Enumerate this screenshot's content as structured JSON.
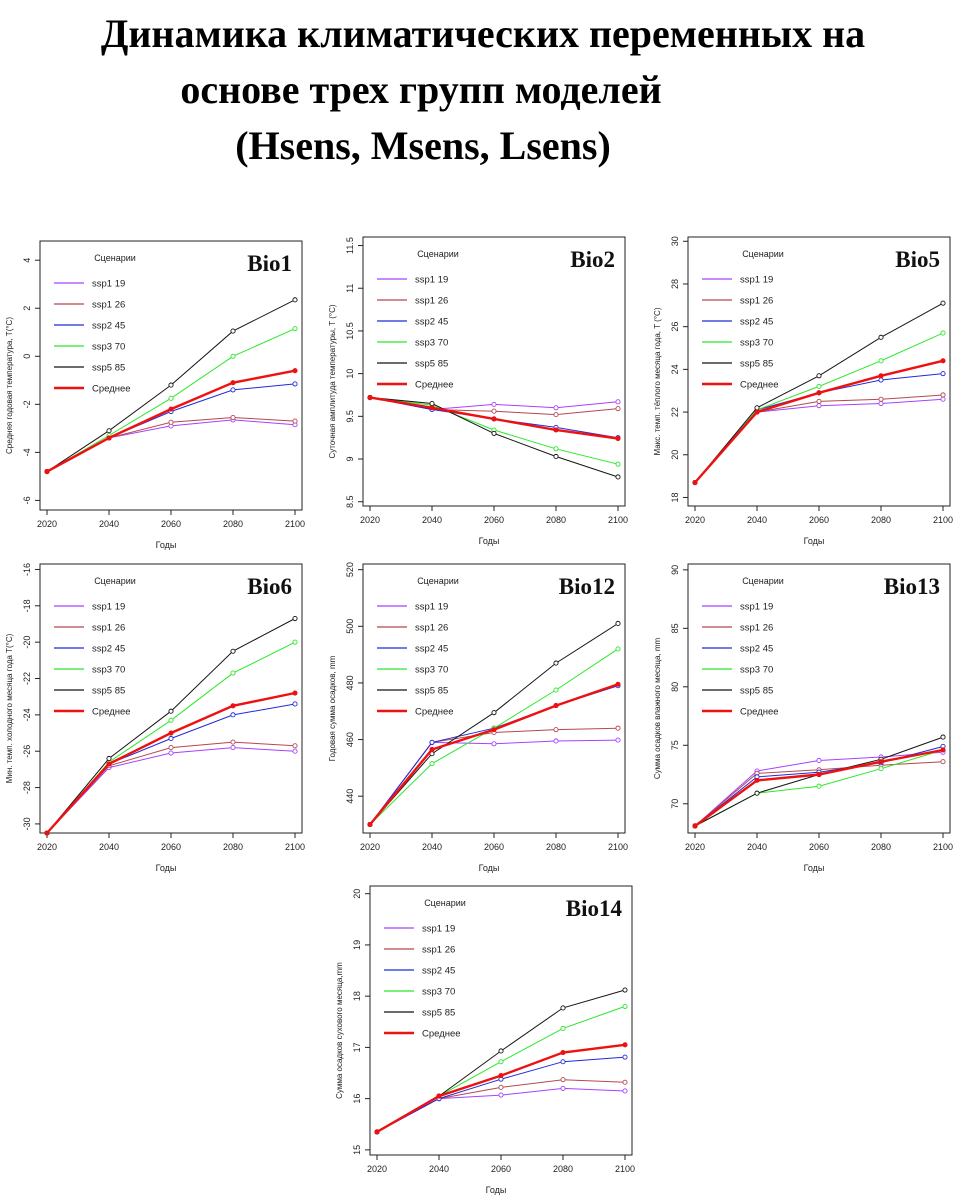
{
  "title_lines": [
    "Динамика климатических переменных на",
    "основе трех групп моделей",
    "(Hsens, Msens, Lsens)"
  ],
  "colors": {
    "ssp1 19": "#a641ff",
    "ssp1 26": "#b5494e",
    "ssp2 45": "#1f2bd8",
    "ssp3 70": "#2ae82a",
    "ssp5 85": "#151515",
    "Среднее": "#ee1111"
  },
  "chart_data": [
    {
      "id": "Bio1",
      "type": "line",
      "title": "Bio1",
      "legend_title": "Сценарии",
      "legend_position": "top-left",
      "xlabel": "Годы",
      "ylabel": "Средняя годовая температура, T(°C)",
      "x": [
        2020,
        2040,
        2060,
        2080,
        2100
      ],
      "ylim": [
        -6.4,
        4.8
      ],
      "yticks": [
        -6,
        -4,
        -2,
        0,
        2,
        4
      ],
      "series": [
        {
          "name": "ssp1 19",
          "values": [
            -4.8,
            -3.4,
            -2.9,
            -2.65,
            -2.85
          ]
        },
        {
          "name": "ssp1 26",
          "values": [
            -4.8,
            -3.4,
            -2.75,
            -2.55,
            -2.7
          ]
        },
        {
          "name": "ssp2 45",
          "values": [
            -4.8,
            -3.4,
            -2.3,
            -1.4,
            -1.15
          ]
        },
        {
          "name": "ssp3 70",
          "values": [
            -4.8,
            -3.3,
            -1.75,
            0.0,
            1.15
          ]
        },
        {
          "name": "ssp5 85",
          "values": [
            -4.8,
            -3.1,
            -1.2,
            1.05,
            2.35
          ]
        },
        {
          "name": "Среднее",
          "values": [
            -4.8,
            -3.4,
            -2.2,
            -1.1,
            -0.6
          ]
        }
      ]
    },
    {
      "id": "Bio2",
      "type": "line",
      "title": "Bio2",
      "legend_title": "Сценарии",
      "legend_position": "top-left",
      "xlabel": "Годы",
      "ylabel": "Суточная амплитуда температуры, T (°C)",
      "x": [
        2020,
        2040,
        2060,
        2080,
        2100
      ],
      "ylim": [
        8.45,
        11.6
      ],
      "yticks": [
        8.5,
        9.0,
        9.5,
        10.0,
        10.5,
        11.0,
        11.5
      ],
      "series": [
        {
          "name": "ssp1 19",
          "values": [
            9.72,
            9.58,
            9.64,
            9.6,
            9.67
          ]
        },
        {
          "name": "ssp1 26",
          "values": [
            9.72,
            9.58,
            9.56,
            9.52,
            9.59
          ]
        },
        {
          "name": "ssp2 45",
          "values": [
            9.72,
            9.58,
            9.47,
            9.37,
            9.25
          ]
        },
        {
          "name": "ssp3 70",
          "values": [
            9.72,
            9.63,
            9.34,
            9.12,
            8.94
          ]
        },
        {
          "name": "ssp5 85",
          "values": [
            9.72,
            9.65,
            9.3,
            9.03,
            8.79
          ]
        },
        {
          "name": "Среднее",
          "values": [
            9.72,
            9.6,
            9.47,
            9.34,
            9.24
          ]
        }
      ]
    },
    {
      "id": "Bio5",
      "type": "line",
      "title": "Bio5",
      "legend_title": "Сценарии",
      "legend_position": "top-left",
      "xlabel": "Годы",
      "ylabel": "Макс. темп. тёплого месяца года, T (°C)",
      "x": [
        2020,
        2040,
        2060,
        2080,
        2100
      ],
      "ylim": [
        17.6,
        30.2
      ],
      "yticks": [
        18,
        20,
        22,
        24,
        26,
        28,
        30
      ],
      "series": [
        {
          "name": "ssp1 19",
          "values": [
            18.7,
            22.0,
            22.3,
            22.4,
            22.6
          ]
        },
        {
          "name": "ssp1 26",
          "values": [
            18.7,
            22.0,
            22.5,
            22.6,
            22.8
          ]
        },
        {
          "name": "ssp2 45",
          "values": [
            18.7,
            22.1,
            22.9,
            23.5,
            23.8
          ]
        },
        {
          "name": "ssp3 70",
          "values": [
            18.7,
            22.1,
            23.2,
            24.4,
            25.7
          ]
        },
        {
          "name": "ssp5 85",
          "values": [
            18.7,
            22.2,
            23.7,
            25.5,
            27.1
          ]
        },
        {
          "name": "Среднее",
          "values": [
            18.7,
            22.0,
            22.9,
            23.7,
            24.4
          ]
        }
      ]
    },
    {
      "id": "Bio6",
      "type": "line",
      "title": "Bio6",
      "legend_title": "Сценарии",
      "legend_position": "top-left",
      "xlabel": "Годы",
      "ylabel": "Мин. темп. холодного месяца года T(°C)",
      "x": [
        2020,
        2040,
        2060,
        2080,
        2100
      ],
      "ylim": [
        -30.5,
        -15.7
      ],
      "yticks": [
        -30,
        -28,
        -26,
        -24,
        -22,
        -20,
        -18,
        -16
      ],
      "series": [
        {
          "name": "ssp1 19",
          "values": [
            -30.5,
            -26.9,
            -26.1,
            -25.8,
            -26.0
          ]
        },
        {
          "name": "ssp1 26",
          "values": [
            -30.5,
            -26.8,
            -25.8,
            -25.5,
            -25.7
          ]
        },
        {
          "name": "ssp2 45",
          "values": [
            -30.5,
            -26.7,
            -25.3,
            -24.0,
            -23.4
          ]
        },
        {
          "name": "ssp3 70",
          "values": [
            -30.5,
            -26.6,
            -24.3,
            -21.7,
            -20.0
          ]
        },
        {
          "name": "ssp5 85",
          "values": [
            -30.5,
            -26.4,
            -23.8,
            -20.5,
            -18.7
          ]
        },
        {
          "name": "Среднее",
          "values": [
            -30.5,
            -26.7,
            -25.0,
            -23.5,
            -22.8
          ]
        }
      ]
    },
    {
      "id": "Bio12",
      "type": "line",
      "title": "Bio12",
      "legend_title": "Сценарии",
      "legend_position": "top-left",
      "xlabel": "Годы",
      "ylabel": "Годовая сумма осадков, mm",
      "x": [
        2020,
        2040,
        2060,
        2080,
        2100
      ],
      "ylim": [
        427,
        522
      ],
      "yticks": [
        440,
        460,
        480,
        500,
        520
      ],
      "series": [
        {
          "name": "ssp1 19",
          "values": [
            430,
            459,
            458.5,
            459.5,
            459.8
          ]
        },
        {
          "name": "ssp1 26",
          "values": [
            430,
            459,
            462.5,
            463.5,
            464
          ]
        },
        {
          "name": "ssp2 45",
          "values": [
            430,
            459,
            464,
            472,
            479
          ]
        },
        {
          "name": "ssp3 70",
          "values": [
            430,
            451.5,
            464,
            477.5,
            492
          ]
        },
        {
          "name": "ssp5 85",
          "values": [
            430,
            455,
            469.5,
            487,
            501
          ]
        },
        {
          "name": "Среднее",
          "values": [
            430,
            456.5,
            463.5,
            472,
            479.5
          ]
        }
      ]
    },
    {
      "id": "Bio13",
      "type": "line",
      "title": "Bio13",
      "legend_title": "Сценарии",
      "legend_position": "top-left",
      "xlabel": "Годы",
      "ylabel": "Сумма осадков влажного месяца, mm",
      "x": [
        2020,
        2040,
        2060,
        2080,
        2100
      ],
      "ylim": [
        67.5,
        90.5
      ],
      "yticks": [
        70,
        75,
        80,
        85,
        90
      ],
      "series": [
        {
          "name": "ssp1 19",
          "values": [
            68.1,
            72.8,
            73.7,
            74.0,
            74.4
          ]
        },
        {
          "name": "ssp1 26",
          "values": [
            68.1,
            72.6,
            72.9,
            73.3,
            73.6
          ]
        },
        {
          "name": "ssp2 45",
          "values": [
            68.1,
            72.3,
            72.7,
            73.5,
            74.9
          ]
        },
        {
          "name": "ssp3 70",
          "values": [
            68.1,
            70.9,
            71.5,
            73.0,
            74.6
          ]
        },
        {
          "name": "ssp5 85",
          "values": [
            68.1,
            70.9,
            72.5,
            73.8,
            75.7
          ]
        },
        {
          "name": "Среднее",
          "values": [
            68.1,
            72.0,
            72.5,
            73.6,
            74.6
          ]
        }
      ]
    },
    {
      "id": "Bio14",
      "type": "line",
      "title": "Bio14",
      "legend_title": "Сценарии",
      "legend_position": "top-left",
      "xlabel": "Годы",
      "ylabel": "Сумма осадков сухового месяца,mm",
      "x": [
        2020,
        2040,
        2060,
        2080,
        2100
      ],
      "ylim": [
        14.9,
        20.15
      ],
      "yticks": [
        15,
        16,
        17,
        18,
        19,
        20
      ],
      "series": [
        {
          "name": "ssp1 19",
          "values": [
            15.35,
            16.0,
            16.07,
            16.2,
            16.15
          ]
        },
        {
          "name": "ssp1 26",
          "values": [
            15.35,
            16.0,
            16.22,
            16.37,
            16.32
          ]
        },
        {
          "name": "ssp2 45",
          "values": [
            15.35,
            16.0,
            16.38,
            16.72,
            16.81
          ]
        },
        {
          "name": "ssp3 70",
          "values": [
            15.35,
            16.05,
            16.72,
            17.37,
            17.8
          ]
        },
        {
          "name": "ssp5 85",
          "values": [
            15.35,
            16.05,
            16.93,
            17.77,
            18.12
          ]
        },
        {
          "name": "Среднее",
          "values": [
            15.35,
            16.05,
            16.45,
            16.9,
            17.05
          ]
        }
      ]
    }
  ]
}
